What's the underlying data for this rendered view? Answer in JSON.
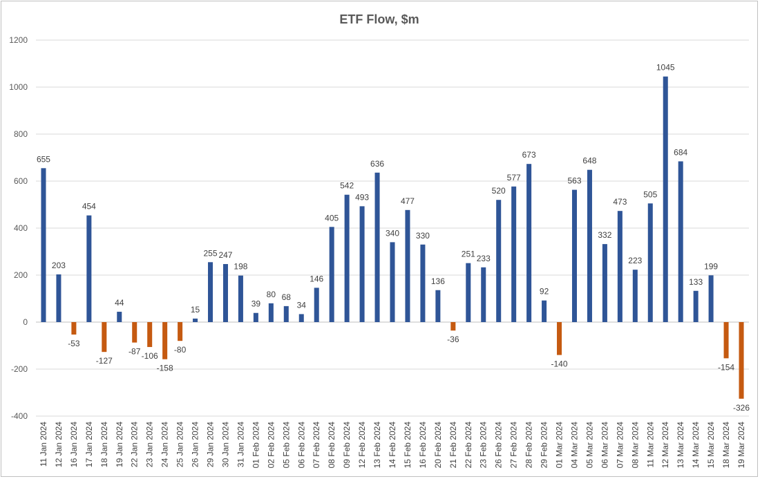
{
  "chart_data": {
    "type": "bar",
    "title": "ETF Flow, $m",
    "xlabel": "",
    "ylabel": "",
    "ylim": [
      -400,
      1200
    ],
    "yticks": [
      -400,
      -200,
      0,
      200,
      400,
      600,
      800,
      1000,
      1200
    ],
    "grid": true,
    "legend": "none",
    "colors": {
      "positive": "#2f5597",
      "negative": "#c55a11"
    },
    "categories": [
      "11 Jan 2024",
      "12 Jan 2024",
      "16 Jan 2024",
      "17 Jan 2024",
      "18 Jan 2024",
      "19 Jan 2024",
      "22 Jan 2024",
      "23 Jan 2024",
      "24 Jan 2024",
      "25 Jan 2024",
      "26 Jan 2024",
      "29 Jan 2024",
      "30 Jan 2024",
      "31 Jan 2024",
      "01 Feb 2024",
      "02 Feb 2024",
      "05 Feb 2024",
      "06 Feb 2024",
      "07 Feb 2024",
      "08 Feb 2024",
      "09 Feb 2024",
      "12 Feb 2024",
      "13 Feb 2024",
      "14 Feb 2024",
      "15 Feb 2024",
      "16 Feb 2024",
      "20 Feb 2024",
      "21 Feb 2024",
      "22 Feb 2024",
      "23 Feb 2024",
      "26 Feb 2024",
      "27 Feb 2024",
      "28 Feb 2024",
      "29 Feb 2024",
      "01 Mar 2024",
      "04 Mar 2024",
      "05 Mar 2024",
      "06 Mar 2024",
      "07 Mar 2024",
      "08 Mar 2024",
      "11 Mar 2024",
      "12 Mar 2024",
      "13 Mar 2024",
      "14 Mar 2024",
      "15 Mar 2024",
      "18 Mar 2024",
      "19 Mar 2024"
    ],
    "values": [
      655,
      203,
      -53,
      454,
      -127,
      44,
      -87,
      -106,
      -158,
      -80,
      15,
      255,
      247,
      198,
      39,
      80,
      68,
      34,
      146,
      405,
      542,
      493,
      636,
      340,
      477,
      330,
      136,
      -36,
      251,
      233,
      520,
      577,
      673,
      92,
      -140,
      563,
      648,
      332,
      473,
      223,
      505,
      1045,
      684,
      133,
      199,
      -154,
      -326
    ]
  }
}
